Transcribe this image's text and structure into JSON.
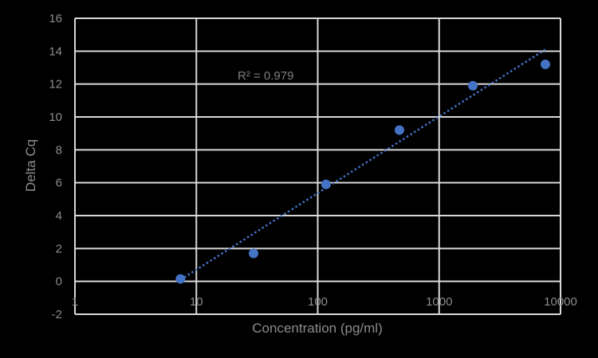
{
  "chart_data": {
    "type": "scatter",
    "title": "",
    "xlabel": "Concentration (pg/ml)",
    "ylabel": "Delta Cq",
    "xscale": "log",
    "xlim": [
      1,
      10000
    ],
    "ylim": [
      -2,
      16
    ],
    "x_ticks": [
      "1",
      "10",
      "100",
      "1000",
      "10000"
    ],
    "y_ticks": [
      "-2",
      "0",
      "2",
      "4",
      "6",
      "8",
      "10",
      "12",
      "14",
      "16"
    ],
    "grid": true,
    "legend": null,
    "series": [
      {
        "name": "Delta Cq",
        "color": "#4472c4",
        "points": [
          {
            "x": 7.4,
            "y": 0.15
          },
          {
            "x": 29.6,
            "y": 1.7
          },
          {
            "x": 117,
            "y": 5.9
          },
          {
            "x": 471,
            "y": 9.2
          },
          {
            "x": 1896,
            "y": 11.9
          },
          {
            "x": 7500,
            "y": 13.2
          }
        ]
      }
    ],
    "trendline": {
      "type": "logarithmic",
      "style": "dotted",
      "color": "#4472c4",
      "from": {
        "x": 7.4,
        "y": 0.1
      },
      "to": {
        "x": 7500,
        "y": 14.1
      },
      "r_squared": 0.979
    },
    "annotations": [
      {
        "text": "R² = 0.979",
        "x": 30,
        "y": 12.5
      }
    ]
  },
  "colors": {
    "background": "#000000",
    "grid": "#d9d9d9",
    "text": "#8c8c8c",
    "series": "#4472c4"
  }
}
